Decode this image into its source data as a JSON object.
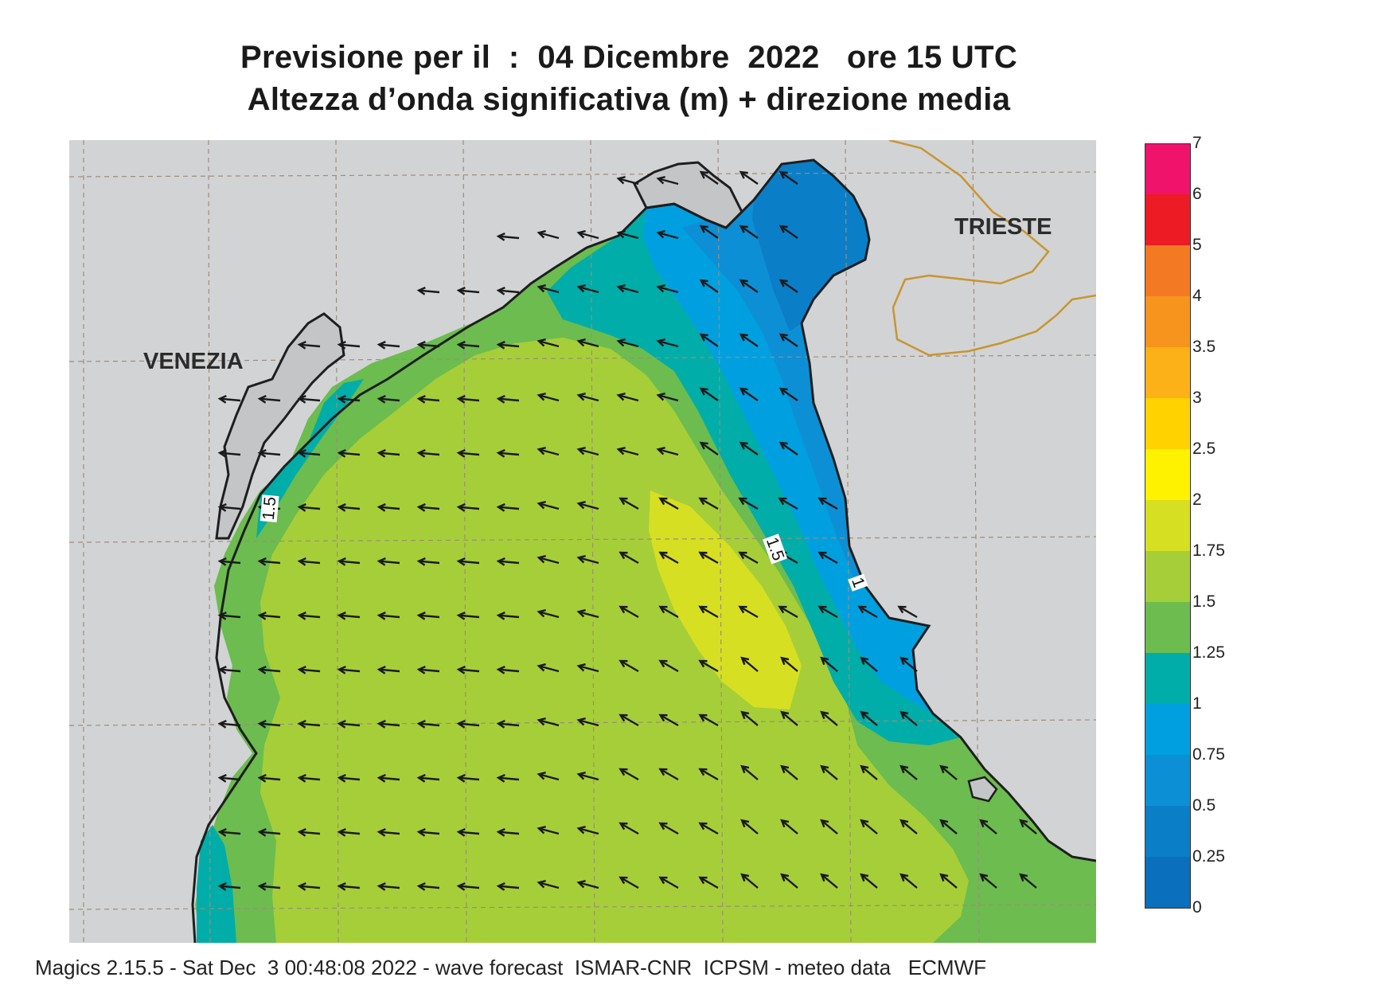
{
  "title": {
    "line1": "Previsione per il  :  04 Dicembre  2022   ore 15 UTC",
    "line2": "Altezza d’onda significativa (m) + direzione media"
  },
  "cities": [
    {
      "name": "VENEZIA"
    },
    {
      "name": "TRIESTE"
    }
  ],
  "contour_labels": [
    "1.5",
    "1.5",
    "1"
  ],
  "legend": {
    "labels": [
      "7",
      "6",
      "5",
      "4",
      "3.5",
      "3",
      "2.5",
      "2",
      "1.75",
      "1.5",
      "1.25",
      "1",
      "0.75",
      "0.5",
      "0.25",
      "0"
    ],
    "colors": [
      "#f0136b",
      "#ed1c24",
      "#f37a23",
      "#f7941d",
      "#fbb117",
      "#ffd200",
      "#fff200",
      "#d7df23",
      "#a6ce39",
      "#6cbc4f",
      "#00ada8",
      "#00a0e0",
      "#0d8fd6",
      "#0b7ec8",
      "#0a6fbc",
      "#0a61b0"
    ]
  },
  "colors": {
    "land": "#d2d3d5",
    "shore": "#1e1e1e",
    "grid": "#9b8e7a",
    "border": "#c8952f",
    "arrow": "#1a1a1a"
  },
  "footer": "Magics 2.15.5 - Sat Dec  3 00:48:08 2022 - wave forecast  ISMAR-CNR  ICPSM - meteo data   ECMWF"
}
